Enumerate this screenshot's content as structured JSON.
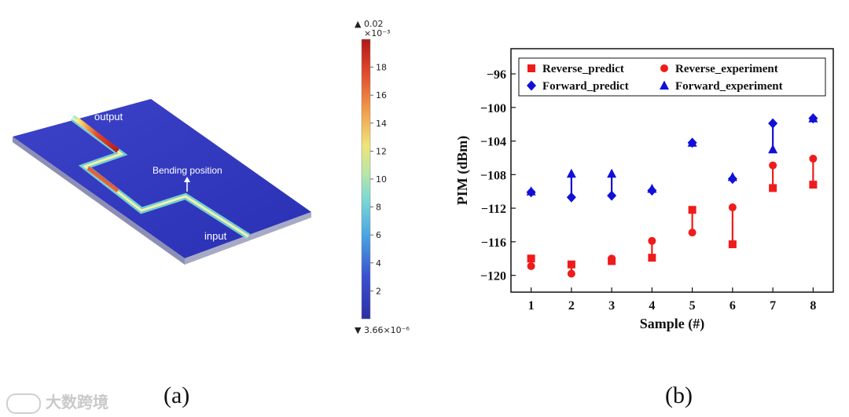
{
  "panel_a": {
    "label_output": "output",
    "label_bending": "Bending position",
    "label_input": "input",
    "colorbar": {
      "max_label": "▲ 0.02",
      "exponent": "×10⁻³",
      "min_label": "▼ 3.66×10⁻⁶",
      "ticks": [
        "18",
        "16",
        "14",
        "12",
        "10",
        "8",
        "6",
        "4",
        "2"
      ]
    },
    "caption": "(a)"
  },
  "panel_b": {
    "caption": "(b)"
  },
  "watermark": "大数跨境",
  "chart_data": {
    "type": "scatter",
    "xlabel": "Sample (#)",
    "ylabel": "PIM (dBm)",
    "x": [
      1,
      2,
      3,
      4,
      5,
      6,
      7,
      8
    ],
    "xticks": [
      "1",
      "2",
      "3",
      "4",
      "5",
      "6",
      "7",
      "8"
    ],
    "ylim": [
      -122,
      -93
    ],
    "yticks": [
      -120,
      -116,
      -112,
      -108,
      -104,
      -100,
      -96
    ],
    "ytick_labels": [
      "−120",
      "−116",
      "−112",
      "−108",
      "−104",
      "−100",
      "−96"
    ],
    "legend_position": "top",
    "series": [
      {
        "name": "Reverse_predict",
        "marker": "square",
        "color": "#ee1c1c",
        "values": [
          -118.0,
          -118.7,
          -118.3,
          -117.9,
          -112.2,
          -116.3,
          -109.6,
          -109.2
        ]
      },
      {
        "name": "Reverse_experiment",
        "marker": "circle",
        "color": "#ee1c1c",
        "values": [
          -118.9,
          -119.8,
          -118.0,
          -115.9,
          -114.9,
          -111.9,
          -106.9,
          -106.1
        ]
      },
      {
        "name": "Forward_predict",
        "marker": "diamond",
        "color": "#1010d8",
        "values": [
          -110.1,
          -110.7,
          -110.5,
          -109.9,
          -104.2,
          -108.5,
          -101.9,
          -101.3
        ]
      },
      {
        "name": "Forward_experiment",
        "marker": "triangle",
        "color": "#1010d8",
        "values": [
          -110.0,
          -107.9,
          -107.9,
          -109.7,
          -104.2,
          -108.3,
          -105.0,
          -101.3
        ]
      }
    ]
  }
}
